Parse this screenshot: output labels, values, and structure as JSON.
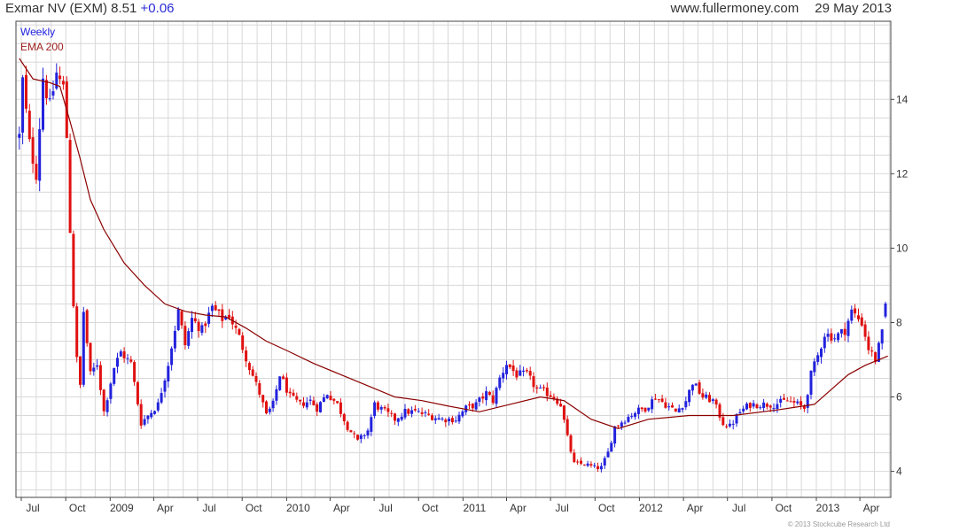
{
  "header": {
    "title": "Exmar NV (EXM) 8.51",
    "change": "+0.06",
    "site": "www.fullermoney.com",
    "date": "29 May 2013"
  },
  "copyright": "© 2013 Stockcube Research Ltd",
  "colors": {
    "up": "#2222dd",
    "down": "#e01010",
    "ema": "#8b0000",
    "grid": "#d8d8d8",
    "frame": "#444444",
    "legend_weekly": "#2222dd",
    "legend_ema": "#a02020"
  },
  "chart_data": {
    "type": "candlestick",
    "frequency": "Weekly",
    "legend": [
      "Weekly",
      "EMA 200"
    ],
    "y_axis": {
      "position": "right",
      "ticks": [
        4,
        6,
        8,
        10,
        12,
        14
      ],
      "ylim": [
        3.3,
        16.1
      ]
    },
    "x_axis": {
      "ticks": [
        "Jul",
        "Oct",
        "2009",
        "Apr",
        "Jul",
        "Oct",
        "2010",
        "Apr",
        "Jul",
        "Oct",
        "2011",
        "Apr",
        "Jul",
        "Oct",
        "2012",
        "Apr",
        "Jul",
        "Oct",
        "2013",
        "Apr"
      ],
      "tick_dates": [
        "2008-07-01",
        "2008-10-01",
        "2009-01-01",
        "2009-04-01",
        "2009-07-01",
        "2009-10-01",
        "2010-01-01",
        "2010-04-01",
        "2010-07-01",
        "2010-10-01",
        "2011-01-01",
        "2011-04-01",
        "2011-07-01",
        "2011-10-01",
        "2012-01-01",
        "2012-04-01",
        "2012-07-01",
        "2012-10-01",
        "2013-01-01",
        "2013-04-01"
      ],
      "range": [
        "2008-06-20",
        "2013-06-04"
      ]
    },
    "last": {
      "date": "2013-05-29",
      "close": 8.51,
      "change": 0.06
    },
    "price_path": [
      [
        "2008-06-27",
        13.0
      ],
      [
        "2008-07-04",
        14.5
      ],
      [
        "2008-07-18",
        12.8
      ],
      [
        "2008-08-01",
        12.0
      ],
      [
        "2008-08-15",
        14.6
      ],
      [
        "2008-08-29",
        13.8
      ],
      [
        "2008-09-12",
        14.7
      ],
      [
        "2008-09-26",
        14.3
      ],
      [
        "2008-10-03",
        13.0
      ],
      [
        "2008-10-10",
        10.5
      ],
      [
        "2008-10-17",
        8.5
      ],
      [
        "2008-10-24",
        7.0
      ],
      [
        "2008-10-31",
        6.3
      ],
      [
        "2008-11-07",
        8.3
      ],
      [
        "2008-11-21",
        6.6
      ],
      [
        "2008-12-05",
        6.9
      ],
      [
        "2008-12-19",
        5.6
      ],
      [
        "2009-01-09",
        6.8
      ],
      [
        "2009-01-23",
        7.2
      ],
      [
        "2009-02-13",
        6.9
      ],
      [
        "2009-03-06",
        5.3
      ],
      [
        "2009-03-20",
        5.5
      ],
      [
        "2009-04-10",
        5.8
      ],
      [
        "2009-05-01",
        6.9
      ],
      [
        "2009-05-22",
        8.3
      ],
      [
        "2009-06-05",
        7.4
      ],
      [
        "2009-06-19",
        8.1
      ],
      [
        "2009-07-10",
        7.8
      ],
      [
        "2009-07-31",
        8.4
      ],
      [
        "2009-08-21",
        8.1
      ],
      [
        "2009-09-04",
        8.2
      ],
      [
        "2009-09-25",
        7.6
      ],
      [
        "2009-10-16",
        6.8
      ],
      [
        "2009-11-06",
        6.1
      ],
      [
        "2009-11-20",
        5.5
      ],
      [
        "2009-12-04",
        5.8
      ],
      [
        "2009-12-18",
        6.6
      ],
      [
        "2010-01-08",
        6.0
      ],
      [
        "2010-01-29",
        5.8
      ],
      [
        "2010-02-19",
        5.9
      ],
      [
        "2010-03-05",
        5.7
      ],
      [
        "2010-03-26",
        6.1
      ],
      [
        "2010-04-16",
        5.8
      ],
      [
        "2010-05-07",
        5.2
      ],
      [
        "2010-05-28",
        4.8
      ],
      [
        "2010-06-18",
        5.1
      ],
      [
        "2010-07-02",
        5.8
      ],
      [
        "2010-07-23",
        5.6
      ],
      [
        "2010-08-13",
        5.4
      ],
      [
        "2010-09-03",
        5.6
      ],
      [
        "2010-09-24",
        5.6
      ],
      [
        "2010-10-22",
        5.5
      ],
      [
        "2010-11-19",
        5.4
      ],
      [
        "2010-12-17",
        5.4
      ],
      [
        "2011-01-07",
        5.7
      ],
      [
        "2011-01-28",
        5.8
      ],
      [
        "2011-02-18",
        6.1
      ],
      [
        "2011-03-04",
        5.9
      ],
      [
        "2011-03-18",
        6.5
      ],
      [
        "2011-04-01",
        6.9
      ],
      [
        "2011-04-22",
        6.6
      ],
      [
        "2011-05-13",
        6.6
      ],
      [
        "2011-06-03",
        6.2
      ],
      [
        "2011-06-24",
        6.1
      ],
      [
        "2011-07-08",
        6.0
      ],
      [
        "2011-07-22",
        5.8
      ],
      [
        "2011-08-05",
        4.9
      ],
      [
        "2011-08-19",
        4.2
      ],
      [
        "2011-09-09",
        4.2
      ],
      [
        "2011-09-30",
        4.1
      ],
      [
        "2011-10-14",
        4.1
      ],
      [
        "2011-10-28",
        4.5
      ],
      [
        "2011-11-11",
        5.2
      ],
      [
        "2011-12-02",
        5.4
      ],
      [
        "2011-12-23",
        5.6
      ],
      [
        "2012-01-13",
        5.7
      ],
      [
        "2012-02-03",
        6.0
      ],
      [
        "2012-02-24",
        5.8
      ],
      [
        "2012-03-16",
        5.6
      ],
      [
        "2012-04-06",
        5.9
      ],
      [
        "2012-04-20",
        6.4
      ],
      [
        "2012-05-11",
        6.0
      ],
      [
        "2012-06-01",
        5.9
      ],
      [
        "2012-06-22",
        5.3
      ],
      [
        "2012-07-06",
        5.2
      ],
      [
        "2012-07-27",
        5.6
      ],
      [
        "2012-08-17",
        5.8
      ],
      [
        "2012-09-07",
        5.8
      ],
      [
        "2012-10-05",
        5.8
      ],
      [
        "2012-11-02",
        5.9
      ],
      [
        "2012-11-23",
        5.8
      ],
      [
        "2012-12-07",
        5.7
      ],
      [
        "2012-12-21",
        6.6
      ],
      [
        "2013-01-04",
        7.1
      ],
      [
        "2013-01-18",
        7.7
      ],
      [
        "2013-02-08",
        7.6
      ],
      [
        "2013-03-01",
        7.8
      ],
      [
        "2013-03-15",
        8.3
      ],
      [
        "2013-04-05",
        8.0
      ],
      [
        "2013-04-19",
        7.3
      ],
      [
        "2013-05-03",
        7.0
      ],
      [
        "2013-05-17",
        7.7
      ],
      [
        "2013-05-29",
        8.51
      ]
    ],
    "ema_200": [
      [
        "2008-06-27",
        15.1
      ],
      [
        "2008-07-25",
        14.55
      ],
      [
        "2008-08-29",
        14.45
      ],
      [
        "2008-09-19",
        14.35
      ],
      [
        "2008-10-10",
        13.4
      ],
      [
        "2008-10-31",
        12.4
      ],
      [
        "2008-11-21",
        11.3
      ],
      [
        "2008-12-19",
        10.5
      ],
      [
        "2009-01-30",
        9.6
      ],
      [
        "2009-03-13",
        9.0
      ],
      [
        "2009-04-24",
        8.5
      ],
      [
        "2009-06-05",
        8.3
      ],
      [
        "2009-07-17",
        8.2
      ],
      [
        "2009-08-28",
        8.15
      ],
      [
        "2009-10-09",
        7.85
      ],
      [
        "2009-11-20",
        7.5
      ],
      [
        "2010-01-01",
        7.25
      ],
      [
        "2010-02-26",
        6.9
      ],
      [
        "2010-04-23",
        6.6
      ],
      [
        "2010-06-18",
        6.3
      ],
      [
        "2010-08-13",
        6.0
      ],
      [
        "2010-10-08",
        5.9
      ],
      [
        "2010-12-03",
        5.75
      ],
      [
        "2011-02-04",
        5.6
      ],
      [
        "2011-04-08",
        5.8
      ],
      [
        "2011-06-10",
        6.0
      ],
      [
        "2011-07-29",
        5.9
      ],
      [
        "2011-09-23",
        5.4
      ],
      [
        "2011-11-18",
        5.15
      ],
      [
        "2012-01-20",
        5.4
      ],
      [
        "2012-04-13",
        5.5
      ],
      [
        "2012-07-13",
        5.5
      ],
      [
        "2012-10-12",
        5.65
      ],
      [
        "2012-12-28",
        5.8
      ],
      [
        "2013-02-01",
        6.2
      ],
      [
        "2013-03-08",
        6.6
      ],
      [
        "2013-04-12",
        6.85
      ],
      [
        "2013-05-29",
        7.1
      ]
    ]
  }
}
